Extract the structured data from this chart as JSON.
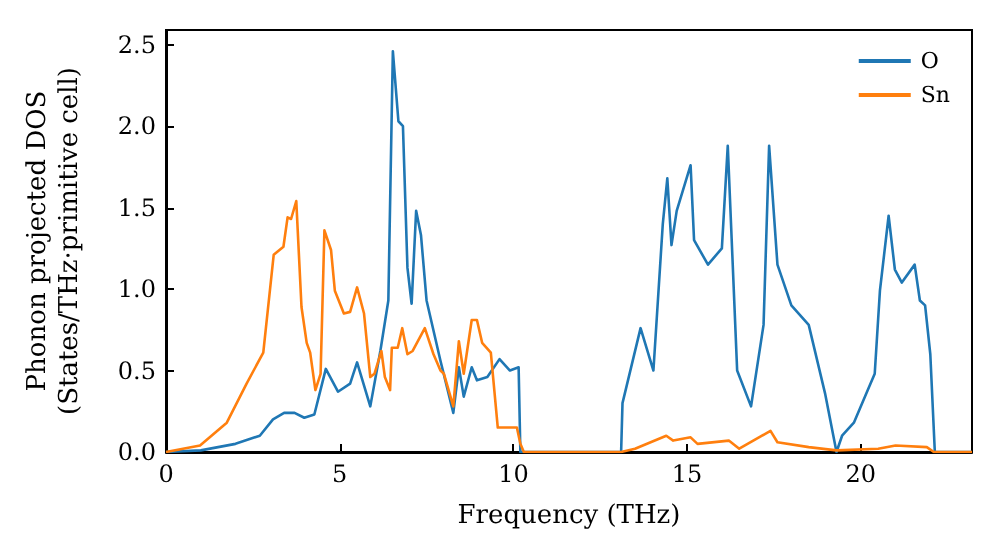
{
  "chart_data": {
    "type": "line",
    "xlabel": "Frequency (THz)",
    "ylabel": "Phonon projected DOS\n(States/THz·primitive cell)",
    "xlim": [
      0,
      23.2
    ],
    "xticks": [
      0,
      5,
      10,
      15,
      20
    ],
    "ylim": [
      0,
      2.59
    ],
    "yticks": [
      {
        "value": 0,
        "label": "0.0"
      },
      {
        "value": 0.5,
        "label": "0.5"
      },
      {
        "value": 1,
        "label": "1.0"
      },
      {
        "value": 1.5,
        "label": "1.5"
      },
      {
        "value": 2,
        "label": "2.0"
      },
      {
        "value": 2.5,
        "label": "2.5"
      }
    ],
    "grid": false,
    "legend": "top right",
    "marker": "none",
    "line_style": "solid",
    "series": [
      {
        "name": "O",
        "color": "#1f77b4",
        "x": [
          0,
          1,
          2,
          2.7,
          3.08,
          3.4,
          3.7,
          3.98,
          4.27,
          4.6,
          4.95,
          5.3,
          5.5,
          5.88,
          6.17,
          6.4,
          6.53,
          6.69,
          6.82,
          6.95,
          7.07,
          7.2,
          7.34,
          7.5,
          7.9,
          8.27,
          8.43,
          8.57,
          8.8,
          8.95,
          9.25,
          9.6,
          9.9,
          10.15,
          10.2,
          13.1,
          13.14,
          13.66,
          14.03,
          14.3,
          14.43,
          14.55,
          14.7,
          15.1,
          15.2,
          15.6,
          16.0,
          16.17,
          16.44,
          16.84,
          17.2,
          17.36,
          17.6,
          18.0,
          18.5,
          18.97,
          19.3,
          19.46,
          19.8,
          20.2,
          20.4,
          20.55,
          20.8,
          20.98,
          21.18,
          21.55,
          21.7,
          21.85,
          22.0,
          22.13,
          23.2
        ],
        "values": [
          0,
          0.01,
          0.05,
          0.1,
          0.2,
          0.24,
          0.24,
          0.21,
          0.23,
          0.51,
          0.37,
          0.42,
          0.55,
          0.28,
          0.62,
          0.93,
          2.46,
          2.03,
          2.0,
          1.13,
          0.91,
          1.48,
          1.33,
          0.93,
          0.56,
          0.24,
          0.52,
          0.34,
          0.52,
          0.44,
          0.46,
          0.57,
          0.5,
          0.52,
          0,
          0,
          0.3,
          0.76,
          0.5,
          1.4,
          1.68,
          1.27,
          1.48,
          1.76,
          1.3,
          1.15,
          1.25,
          1.88,
          0.5,
          0.28,
          0.78,
          1.88,
          1.15,
          0.9,
          0.78,
          0.36,
          0,
          0.1,
          0.18,
          0.38,
          0.48,
          0.99,
          1.45,
          1.12,
          1.04,
          1.15,
          0.93,
          0.9,
          0.6,
          0,
          0
        ]
      },
      {
        "name": "Sn",
        "color": "#ff7f0e",
        "x": [
          0,
          0.98,
          1.75,
          2.32,
          2.8,
          3.1,
          3.38,
          3.5,
          3.6,
          3.75,
          3.9,
          4.05,
          4.15,
          4.3,
          4.45,
          4.56,
          4.75,
          4.86,
          5.12,
          5.3,
          5.5,
          5.7,
          5.88,
          6.0,
          6.2,
          6.3,
          6.45,
          6.5,
          6.67,
          6.8,
          6.95,
          7.1,
          7.45,
          7.7,
          7.9,
          8.0,
          8.27,
          8.43,
          8.57,
          8.8,
          8.95,
          9.1,
          9.35,
          9.55,
          10.1,
          10.2,
          10.3,
          13.1,
          13.5,
          14.4,
          14.6,
          15.1,
          15.3,
          16.2,
          16.5,
          17.4,
          17.6,
          18.5,
          19.3,
          20.5,
          21.0,
          21.9,
          22.1,
          23.2
        ],
        "values": [
          0,
          0.04,
          0.18,
          0.42,
          0.61,
          1.21,
          1.26,
          1.44,
          1.43,
          1.54,
          0.89,
          0.67,
          0.61,
          0.38,
          0.48,
          1.36,
          1.24,
          0.99,
          0.85,
          0.86,
          1.01,
          0.85,
          0.46,
          0.48,
          0.62,
          0.46,
          0.38,
          0.64,
          0.64,
          0.76,
          0.6,
          0.62,
          0.76,
          0.6,
          0.5,
          0.48,
          0.28,
          0.68,
          0.48,
          0.81,
          0.81,
          0.67,
          0.61,
          0.15,
          0.15,
          0.05,
          0,
          0,
          0.02,
          0.1,
          0.07,
          0.09,
          0.05,
          0.07,
          0.02,
          0.13,
          0.06,
          0.03,
          0.01,
          0.02,
          0.04,
          0.03,
          0,
          0
        ]
      }
    ]
  }
}
